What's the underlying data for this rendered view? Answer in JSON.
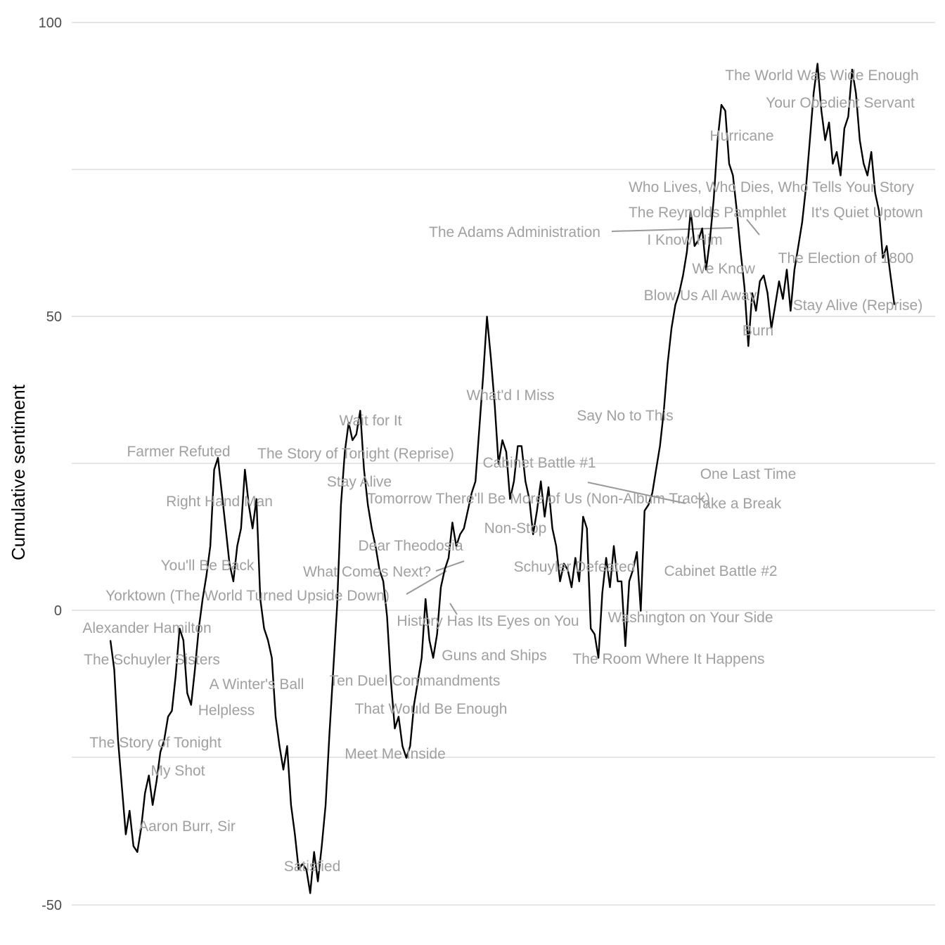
{
  "chart_data": {
    "type": "line",
    "title": "",
    "xlabel": "",
    "ylabel": "Cumulative sentiment",
    "ylim": [
      -50,
      100
    ],
    "y_ticks": [
      "100",
      "50",
      "0",
      "-50"
    ],
    "grid": true,
    "x_axis_visible": false,
    "line_color": "#000000",
    "label_color": "#a0a0a0",
    "series": [
      {
        "values_in_order": [
          -5,
          -10,
          -22,
          -30,
          -38,
          -34,
          -40,
          -41,
          -37,
          -31,
          -28,
          -33,
          -29,
          -24,
          -22,
          -18,
          -17,
          -11,
          -3,
          -5,
          -14,
          -16,
          -10,
          -3,
          2,
          6,
          11,
          24,
          26,
          20,
          14,
          8,
          5,
          11,
          14,
          24,
          18,
          14,
          19,
          2,
          -3,
          -5,
          -8,
          -18,
          -23,
          -27,
          -23,
          -33,
          -38,
          -44,
          -43,
          -44,
          -48,
          -41,
          -46,
          -40,
          -33,
          -21,
          -10,
          1,
          18,
          27,
          32,
          29,
          30,
          34,
          24,
          18,
          14,
          11,
          7,
          5,
          -1,
          -12,
          -20,
          -18,
          -23,
          -25,
          -23,
          -16,
          -12,
          -8,
          2,
          -5,
          -8,
          -4,
          4,
          7,
          9,
          15,
          11,
          13,
          14,
          17,
          20,
          22,
          31,
          40,
          50,
          43,
          35,
          25,
          29,
          27,
          19,
          22,
          28,
          28,
          22,
          19,
          13,
          17,
          22,
          16,
          21,
          14,
          11,
          5,
          8,
          7,
          4,
          9,
          5,
          16,
          14,
          -3,
          -4,
          -8,
          3,
          9,
          4,
          11,
          5,
          5,
          -6,
          5,
          7,
          10,
          0,
          17,
          18,
          20,
          24,
          28,
          34,
          42,
          48,
          52,
          54,
          57,
          61,
          68,
          62,
          63,
          65,
          58,
          63,
          70,
          80,
          86,
          85,
          76,
          74,
          68,
          61,
          55,
          45,
          54,
          51,
          56,
          57,
          54,
          48,
          52,
          56,
          53,
          58,
          51,
          58,
          62,
          66,
          72,
          80,
          88,
          93,
          85,
          80,
          83,
          76,
          78,
          74,
          82,
          84,
          92,
          88,
          80,
          76,
          74,
          78,
          71,
          68,
          60,
          62,
          57,
          52
        ]
      }
    ],
    "annotations": [
      "Alexander Hamilton",
      "The Schuyler Sisters",
      "The Story of Tonight",
      "My Shot",
      "Aaron Burr, Sir",
      "Yorktown (The World Turned Upside Down)",
      "You'll Be Back",
      "Right Hand Man",
      "Farmer Refuted",
      "A Winter's Ball",
      "Helpless",
      "Satisfied",
      "The Story of Tonight (Reprise)",
      "Wait for It",
      "Stay Alive",
      "Tomorrow There'll Be More of Us (Non-Album Track)",
      "Dear Theodosia",
      "What Comes Next?",
      "Ten Duel Commandments",
      "That Would Be Enough",
      "Meet Me Inside",
      "History Has Its Eyes on You",
      "Guns and Ships",
      "Non-Stop",
      "What'd I Miss",
      "Cabinet Battle #1",
      "Say No to This",
      "Schuyler Defeated",
      "The Room Where It Happens",
      "Washington on Your Side",
      "Cabinet Battle #2",
      "One Last Time",
      "Take a Break",
      "The Adams Administration",
      "I Know Him",
      "We Know",
      "Blow Us All Away",
      "Burn",
      "Hurricane",
      "The Reynolds Pamphlet",
      "Who Lives, Who Dies, Who Tells Your Story",
      "It's Quiet Uptown",
      "The Election of 1800",
      "Stay Alive (Reprise)",
      "Your Obedient Servant",
      "The World Was Wide Enough"
    ]
  }
}
